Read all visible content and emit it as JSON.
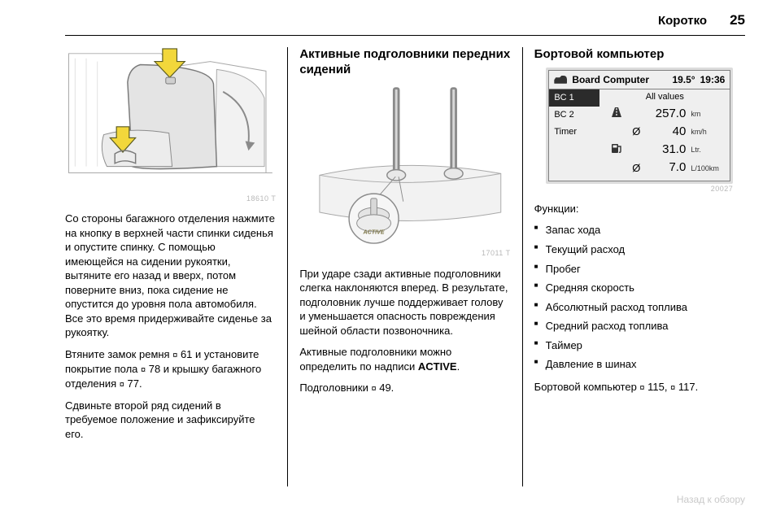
{
  "header": {
    "section": "Коротко",
    "page": "25"
  },
  "col1": {
    "fig_id": "18610 T",
    "p1": "Со стороны багажного отделения нажмите на кнопку в верхней части спинки сиденья и опустите спинку. С помощью имеющейся на сиде­нии рукоятки, вытяните его назад и вверх, потом поверните вниз, пока сидение не опустится до уровня пола автомобиля. Все это время придерживайте сиденье за рукоятку.",
    "p2a": "Втяните замок ремня ",
    "p2b": " 61 и уста­новите покрытие пола ",
    "p2c": " 78 и кры­шку багажного отделения ",
    "p2d": " 77.",
    "p3": "Сдвиньте второй ряд сидений в требуемое положение и зафикси­руйте его."
  },
  "col2": {
    "heading": "Активные подголовники передних сидений",
    "fig_id": "17011 T",
    "active_label": "ACTIVE",
    "p1": "При ударе сзади активные подго­ловники слегка наклоняются впе­ред. В результате, подголовник лучше поддерживает голову и уменьшается опасность повре­ждения шейной области позвоноч­ника.",
    "p2a": "Активные подголовники можно определить по надписи ",
    "p2b": "ACTIVE",
    "p2c": ".",
    "p3a": "Подголовники ",
    "p3b": " 49."
  },
  "col3": {
    "heading": "Бортовой компьютер",
    "display": {
      "title": "Board Computer",
      "temp": "19.5°",
      "time": "19:36",
      "menu": [
        "BC 1",
        "BC 2",
        "Timer"
      ],
      "selected": 0,
      "values_head": "All values",
      "rows": [
        {
          "icon": "road",
          "avg": "",
          "num": "257.0",
          "unit": "km"
        },
        {
          "icon": "",
          "avg": "Ø",
          "num": "40",
          "unit": "km/h"
        },
        {
          "icon": "fuel",
          "avg": "",
          "num": "31.0",
          "unit": "Ltr."
        },
        {
          "icon": "",
          "avg": "Ø",
          "num": "7.0",
          "unit": "L/100km"
        }
      ],
      "fig_id": "20027"
    },
    "functions_label": "Функции:",
    "functions": [
      "Запас хода",
      "Текущий расход",
      "Пробег",
      "Средняя скорость",
      "Абсолютный расход топлива",
      "Средний расход топлива",
      "Таймер",
      "Давление в шинах"
    ],
    "p_ref_a": "Бортовой компьютер ",
    "p_ref_b": " 115, ",
    "p_ref_c": " 117."
  },
  "footer": "Назад к обзору",
  "colors": {
    "arrow": "#f2d73b",
    "arrow_stroke": "#5a5a20",
    "seat_fill": "#e4e4e4",
    "seat_stroke": "#7a7a7a",
    "line_art": "#a9a9a9",
    "fig_caption": "#b8b8b8",
    "bc_frame": "#dcdcdc",
    "bc_inner": "#efefef",
    "bc_sel_bg": "#2b2b2b",
    "active_text": "#7a7344"
  }
}
